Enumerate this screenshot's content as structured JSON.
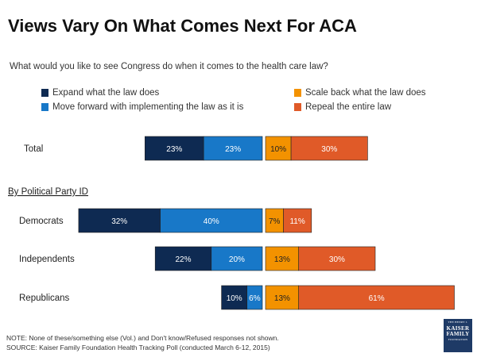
{
  "title": "Views Vary On What Comes Next For ACA",
  "subtitle": "What would you like to see Congress do when it comes to the health care law?",
  "legend": [
    {
      "label": "Expand what the law does",
      "color": "#0e2a52"
    },
    {
      "label": "Move forward with implementing the law as it is",
      "color": "#1878c8"
    },
    {
      "label": "Scale back what the law does",
      "color": "#f39200"
    },
    {
      "label": "Repeal the entire law",
      "color": "#e05a28"
    }
  ],
  "section_label": "By Political Party ID",
  "chart_data": {
    "type": "bar",
    "orientation": "horizontal",
    "stacked": "diverging",
    "categories": [
      "Total",
      "Democrats",
      "Independents",
      "Republicans"
    ],
    "series": [
      {
        "name": "Expand what the law does",
        "side": "left",
        "color": "#0e2a52",
        "values": [
          23,
          32,
          22,
          10
        ]
      },
      {
        "name": "Move forward with implementing the law as it is",
        "side": "left",
        "color": "#1878c8",
        "values": [
          23,
          40,
          20,
          6
        ]
      },
      {
        "name": "Scale back what the law does",
        "side": "right",
        "color": "#f39200",
        "values": [
          10,
          7,
          13,
          13
        ]
      },
      {
        "name": "Repeal the entire law",
        "side": "right",
        "color": "#e05a28",
        "values": [
          30,
          11,
          30,
          61
        ]
      }
    ],
    "labels": [
      [
        "23%",
        "32%",
        "22%",
        "10%"
      ],
      [
        "23%",
        "40%",
        "20%",
        "6%"
      ],
      [
        "10%",
        "7%",
        "13%",
        "13%"
      ],
      [
        "30%",
        "11%",
        "30%",
        "61%"
      ]
    ],
    "unit": "%"
  },
  "notes": {
    "note": "NOTE: None of these/something else (Vol.) and Don't know/Refused responses not shown.",
    "source": "SOURCE: Kaiser Family Foundation Health Tracking Poll (conducted March 6-12, 2015)"
  },
  "logo": {
    "line1": "THE HENRY J.",
    "line2": "KAISER FAMILY",
    "line3": "FOUNDATION"
  }
}
